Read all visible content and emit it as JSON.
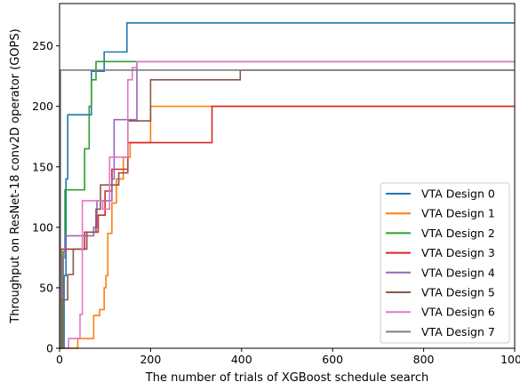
{
  "chart_data": {
    "type": "line",
    "xlabel": "The number of trials of XGBoost schedule search",
    "ylabel": "Throughput on ResNet-18 conv2D operator (GOPS)",
    "xlim": [
      0,
      1000
    ],
    "ylim": [
      0,
      285
    ],
    "xticks": [
      0,
      200,
      400,
      600,
      800,
      1000
    ],
    "yticks": [
      0,
      50,
      100,
      150,
      200,
      250
    ],
    "grid": false,
    "legend_position": "lower right",
    "series": [
      {
        "name": "VTA Design 0",
        "color": "#1f77b4",
        "points": [
          [
            0,
            0
          ],
          [
            10,
            0
          ],
          [
            10,
            60
          ],
          [
            14,
            60
          ],
          [
            14,
            140
          ],
          [
            18,
            140
          ],
          [
            18,
            193
          ],
          [
            70,
            193
          ],
          [
            70,
            229
          ],
          [
            98,
            229
          ],
          [
            98,
            245
          ],
          [
            148,
            245
          ],
          [
            148,
            269
          ],
          [
            1000,
            269
          ]
        ]
      },
      {
        "name": "VTA Design 1",
        "color": "#ff7f0e",
        "points": [
          [
            0,
            0
          ],
          [
            40,
            0
          ],
          [
            40,
            8
          ],
          [
            75,
            8
          ],
          [
            75,
            27
          ],
          [
            88,
            27
          ],
          [
            88,
            32
          ],
          [
            98,
            32
          ],
          [
            98,
            50
          ],
          [
            102,
            50
          ],
          [
            102,
            60
          ],
          [
            106,
            60
          ],
          [
            106,
            95
          ],
          [
            115,
            95
          ],
          [
            115,
            120
          ],
          [
            125,
            120
          ],
          [
            125,
            140
          ],
          [
            140,
            140
          ],
          [
            140,
            158
          ],
          [
            155,
            158
          ],
          [
            155,
            170
          ],
          [
            200,
            170
          ],
          [
            200,
            200
          ],
          [
            1000,
            200
          ]
        ]
      },
      {
        "name": "VTA Design 2",
        "color": "#2ca02c",
        "points": [
          [
            0,
            0
          ],
          [
            8,
            0
          ],
          [
            8,
            80
          ],
          [
            12,
            80
          ],
          [
            12,
            131
          ],
          [
            30,
            131
          ],
          [
            30,
            131
          ],
          [
            55,
            131
          ],
          [
            55,
            165
          ],
          [
            65,
            165
          ],
          [
            65,
            200
          ],
          [
            70,
            200
          ],
          [
            70,
            222
          ],
          [
            80,
            222
          ],
          [
            80,
            237
          ],
          [
            1000,
            237
          ]
        ]
      },
      {
        "name": "VTA Design 3",
        "color": "#d62728",
        "points": [
          [
            0,
            0
          ],
          [
            4,
            0
          ],
          [
            4,
            82
          ],
          [
            55,
            82
          ],
          [
            55,
            96
          ],
          [
            85,
            96
          ],
          [
            85,
            110
          ],
          [
            100,
            110
          ],
          [
            100,
            130
          ],
          [
            115,
            130
          ],
          [
            115,
            148
          ],
          [
            150,
            148
          ],
          [
            150,
            170
          ],
          [
            200,
            170
          ],
          [
            200,
            170
          ],
          [
            335,
            170
          ],
          [
            335,
            200
          ],
          [
            1000,
            200
          ]
        ]
      },
      {
        "name": "VTA Design 4",
        "color": "#9467bd",
        "points": [
          [
            0,
            0
          ],
          [
            6,
            0
          ],
          [
            6,
            75
          ],
          [
            12,
            75
          ],
          [
            12,
            93
          ],
          [
            40,
            93
          ],
          [
            40,
            93
          ],
          [
            75,
            93
          ],
          [
            75,
            100
          ],
          [
            82,
            100
          ],
          [
            82,
            122
          ],
          [
            115,
            122
          ],
          [
            115,
            140
          ],
          [
            120,
            140
          ],
          [
            120,
            189
          ],
          [
            145,
            189
          ],
          [
            145,
            189
          ],
          [
            170,
            189
          ],
          [
            170,
            237
          ],
          [
            1000,
            237
          ]
        ]
      },
      {
        "name": "VTA Design 5",
        "color": "#8c564b",
        "points": [
          [
            0,
            0
          ],
          [
            5,
            0
          ],
          [
            5,
            40
          ],
          [
            18,
            40
          ],
          [
            18,
            61
          ],
          [
            30,
            61
          ],
          [
            30,
            82
          ],
          [
            60,
            82
          ],
          [
            60,
            96
          ],
          [
            80,
            96
          ],
          [
            80,
            115
          ],
          [
            90,
            115
          ],
          [
            90,
            135
          ],
          [
            130,
            135
          ],
          [
            130,
            145
          ],
          [
            150,
            145
          ],
          [
            150,
            188
          ],
          [
            200,
            188
          ],
          [
            200,
            222
          ],
          [
            397,
            222
          ],
          [
            397,
            230
          ],
          [
            1000,
            230
          ]
        ]
      },
      {
        "name": "VTA Design 6",
        "color": "#e377c2",
        "points": [
          [
            0,
            0
          ],
          [
            20,
            0
          ],
          [
            20,
            8
          ],
          [
            45,
            8
          ],
          [
            45,
            28
          ],
          [
            50,
            28
          ],
          [
            50,
            122
          ],
          [
            75,
            122
          ],
          [
            75,
            122
          ],
          [
            95,
            122
          ],
          [
            95,
            115
          ],
          [
            110,
            115
          ],
          [
            110,
            158
          ],
          [
            150,
            158
          ],
          [
            150,
            222
          ],
          [
            160,
            222
          ],
          [
            160,
            232
          ],
          [
            170,
            232
          ],
          [
            170,
            237
          ],
          [
            1000,
            237
          ]
        ]
      },
      {
        "name": "VTA Design 7",
        "color": "#7f7f7f",
        "points": [
          [
            0,
            0
          ],
          [
            2,
            0
          ],
          [
            2,
            230
          ],
          [
            1000,
            230
          ]
        ]
      }
    ]
  }
}
